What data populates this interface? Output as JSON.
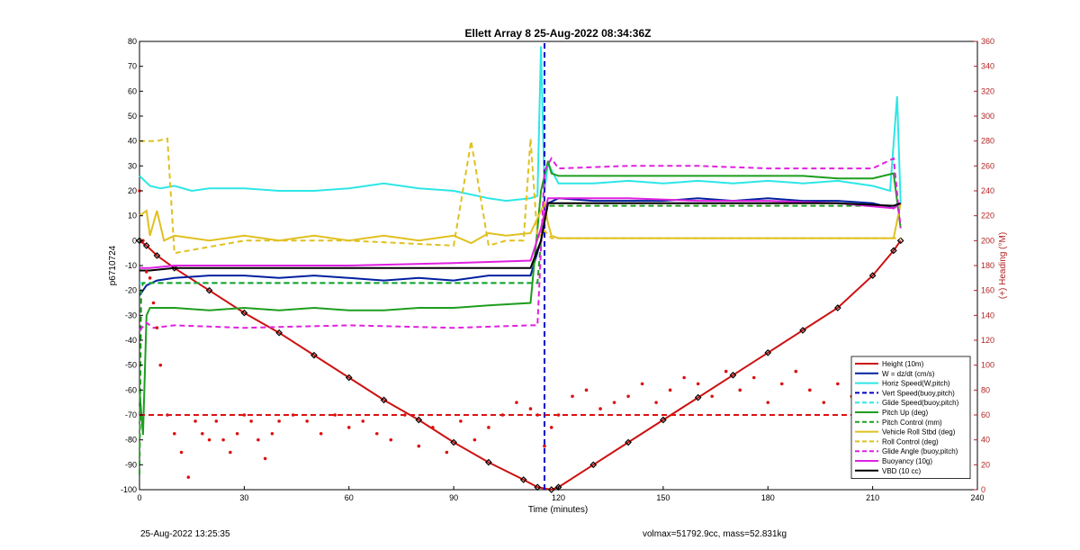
{
  "chart_data": {
    "type": "line",
    "title": "Ellett Array 8 25-Aug-2022 08:34:36Z",
    "xlabel": "Time (minutes)",
    "ylabel_left": "p6710724",
    "ylabel_right": "(+) Heading (°M)",
    "xlim": [
      0,
      240
    ],
    "ylim_left": [
      -100,
      80
    ],
    "ylim_right": [
      0,
      360
    ],
    "x_ticks": [
      "0",
      "30",
      "60",
      "90",
      "120",
      "150",
      "180",
      "210",
      "240"
    ],
    "y_ticks_left": [
      "80",
      "70",
      "60",
      "50",
      "40",
      "30",
      "20",
      "10",
      "0",
      "-10",
      "-20",
      "-30",
      "-40",
      "-50",
      "-60",
      "-70",
      "-80",
      "-90",
      "-100"
    ],
    "y_ticks_right": [
      "360",
      "340",
      "320",
      "300",
      "280",
      "260",
      "240",
      "220",
      "200",
      "180",
      "160",
      "140",
      "120",
      "100",
      "80",
      "60",
      "40",
      "20",
      "0"
    ],
    "grid": false,
    "legend_position": "bottom-right",
    "colors": {
      "height": "#cc1111",
      "w": "#00209f",
      "horiz_speed": "#2ee6e6",
      "vert_speed": "#0000cc",
      "glide_speed": "#2ee6e6",
      "pitch": "#1e9e1e",
      "pitch_control": "#1e9e1e",
      "roll": "#e0c020",
      "roll_control": "#e0c020",
      "glide_angle": "#e020e0",
      "buoyancy": "#e020e0",
      "vbd": "#000000",
      "heading": "#dd1111",
      "right_axis": "#b22222"
    },
    "series": [
      {
        "name": "Height (10m)",
        "axis": "left",
        "x": [
          0,
          2,
          5,
          10,
          20,
          30,
          40,
          50,
          60,
          70,
          80,
          90,
          100,
          110,
          114,
          118,
          120,
          130,
          140,
          150,
          160,
          170,
          180,
          190,
          200,
          210,
          216,
          218
        ],
        "y": [
          0,
          -2,
          -6,
          -11,
          -20,
          -29,
          -37,
          -46,
          -55,
          -64,
          -72,
          -81,
          -89,
          -96,
          -99,
          -100,
          -99,
          -90,
          -81,
          -72,
          -63,
          -54,
          -45,
          -36,
          -27,
          -14,
          -4,
          0
        ]
      },
      {
        "name": "W = dz/dt (cm/s)",
        "axis": "left",
        "x": [
          0,
          2,
          5,
          10,
          20,
          30,
          40,
          50,
          60,
          70,
          80,
          90,
          100,
          112,
          115,
          117,
          120,
          130,
          140,
          150,
          160,
          170,
          180,
          190,
          200,
          210,
          216,
          218
        ],
        "y": [
          -22,
          -18,
          -16,
          -15,
          -14,
          -14,
          -15,
          -14,
          -15,
          -16,
          -15,
          -16,
          -14,
          -14,
          0,
          15,
          17,
          16,
          16,
          16,
          17,
          16,
          17,
          16,
          16,
          15,
          13,
          15
        ]
      },
      {
        "name": "Horiz Speed(W,pitch)",
        "axis": "left",
        "x": [
          0,
          3,
          6,
          10,
          15,
          20,
          30,
          40,
          50,
          60,
          70,
          80,
          90,
          100,
          105,
          112,
          114,
          115,
          116,
          117,
          120,
          130,
          140,
          150,
          160,
          170,
          180,
          190,
          200,
          210,
          215,
          217,
          218
        ],
        "y": [
          26,
          22,
          21,
          22,
          20,
          21,
          21,
          20,
          20,
          21,
          23,
          21,
          20,
          17,
          16,
          17,
          18,
          78,
          20,
          31,
          23,
          23,
          24,
          23,
          24,
          23,
          24,
          23,
          24,
          22,
          20,
          58,
          15
        ]
      },
      {
        "name": "Vert Speed(buoy,pitch)",
        "axis": "left",
        "style": "dashed",
        "x": [
          116,
          116,
          116,
          116
        ],
        "y": [
          -100,
          -40,
          30,
          80
        ]
      },
      {
        "name": "Glide Speed(buoy,pitch)",
        "axis": "left",
        "style": "dashed",
        "x": [
          0,
          114
        ],
        "y": [
          -17,
          -17
        ]
      },
      {
        "name": "Pitch Up (deg)",
        "axis": "left",
        "x": [
          0,
          1,
          2,
          3,
          5,
          10,
          20,
          30,
          40,
          50,
          60,
          70,
          80,
          90,
          100,
          112,
          115,
          117,
          118,
          120,
          130,
          140,
          150,
          160,
          170,
          180,
          190,
          200,
          210,
          216,
          218
        ],
        "y": [
          -60,
          -78,
          -30,
          -27,
          -27,
          -27,
          -28,
          -27,
          -28,
          -27,
          -28,
          -28,
          -27,
          -27,
          -26,
          -25,
          20,
          32,
          27,
          26,
          26,
          26,
          26,
          26,
          26,
          26,
          26,
          25,
          25,
          27,
          5
        ]
      },
      {
        "name": "Pitch Control (mm)",
        "axis": "left",
        "style": "dashed",
        "x": [
          0,
          0.5,
          1,
          5,
          114,
          115,
          116,
          117,
          218
        ],
        "y": [
          -94,
          -20,
          -17,
          -17,
          -17,
          0,
          10,
          14,
          14
        ]
      },
      {
        "name": "Vehicle Roll Stbd (deg)",
        "axis": "left",
        "x": [
          0,
          2,
          3,
          5,
          7,
          10,
          20,
          30,
          40,
          50,
          60,
          70,
          80,
          90,
          95,
          100,
          105,
          112,
          116,
          117,
          118,
          120,
          140,
          160,
          180,
          200,
          210,
          216,
          218
        ],
        "y": [
          10,
          12,
          2,
          12,
          0,
          2,
          0,
          2,
          0,
          2,
          0,
          2,
          0,
          2,
          -1,
          3,
          2,
          3,
          15,
          7,
          2,
          1,
          1,
          1,
          1,
          1,
          1,
          1,
          15
        ]
      },
      {
        "name": "Roll Control (deg)",
        "axis": "left",
        "style": "dashed",
        "x": [
          0,
          3,
          5,
          8,
          10,
          30,
          60,
          90,
          95,
          100,
          105,
          110,
          112,
          114,
          116,
          118,
          120,
          140,
          160,
          180,
          200,
          210,
          216,
          218
        ],
        "y": [
          40,
          40,
          40,
          41,
          -5,
          0,
          0,
          -2,
          40,
          -2,
          0,
          0,
          41,
          1,
          4,
          1,
          1,
          1,
          1,
          1,
          1,
          1,
          1,
          1
        ]
      },
      {
        "name": "Glide Angle (buoy,pitch)",
        "axis": "left",
        "style": "dashed",
        "x": [
          0,
          2,
          4,
          10,
          30,
          60,
          90,
          112,
          114,
          116,
          118,
          120,
          140,
          160,
          180,
          200,
          210,
          216,
          218
        ],
        "y": [
          -36,
          -33,
          -35,
          -34,
          -35,
          -34,
          -35,
          -34,
          -34,
          28,
          33,
          29,
          30,
          30,
          29,
          29,
          29,
          33,
          5
        ]
      },
      {
        "name": "Buoyancy (10g)",
        "axis": "left",
        "x": [
          0,
          3,
          10,
          30,
          60,
          90,
          112,
          115,
          117,
          120,
          140,
          160,
          180,
          200,
          216,
          218
        ],
        "y": [
          -11,
          -11,
          -10,
          -10,
          -10,
          -9,
          -8,
          5,
          17,
          17,
          17,
          16,
          16,
          15,
          13,
          15
        ]
      },
      {
        "name": "VBD (10 cc)",
        "axis": "left",
        "x": [
          0,
          3,
          10,
          30,
          60,
          90,
          112,
          115,
          117,
          120,
          140,
          160,
          180,
          200,
          216,
          218
        ],
        "y": [
          -12,
          -12,
          -11,
          -11,
          -11,
          -11,
          -11,
          0,
          15,
          15,
          15,
          15,
          15,
          15,
          14,
          15
        ]
      },
      {
        "name": "Heading",
        "axis": "right",
        "style": "dots",
        "x": [
          0,
          1,
          2,
          3,
          4,
          5,
          6,
          8,
          10,
          12,
          14,
          16,
          18,
          20,
          22,
          24,
          26,
          28,
          30,
          32,
          34,
          36,
          38,
          40,
          44,
          48,
          52,
          56,
          60,
          64,
          68,
          72,
          76,
          80,
          84,
          88,
          92,
          96,
          100,
          104,
          108,
          112,
          114,
          116,
          118,
          120,
          124,
          128,
          132,
          136,
          140,
          144,
          148,
          152,
          156,
          160,
          164,
          168,
          172,
          176,
          180,
          184,
          188,
          192,
          196,
          200,
          204,
          208,
          212,
          216,
          218
        ],
        "y": [
          240,
          200,
          175,
          170,
          150,
          130,
          100,
          60,
          45,
          30,
          10,
          55,
          45,
          40,
          55,
          40,
          30,
          45,
          60,
          55,
          40,
          25,
          45,
          55,
          60,
          55,
          45,
          60,
          50,
          55,
          45,
          40,
          60,
          35,
          50,
          30,
          55,
          40,
          50,
          60,
          70,
          65,
          60,
          35,
          50,
          60,
          75,
          80,
          65,
          70,
          75,
          85,
          70,
          80,
          90,
          85,
          75,
          95,
          80,
          90,
          70,
          85,
          95,
          80,
          70,
          85,
          75,
          90,
          60,
          55,
          65
        ]
      },
      {
        "name": "Heading mean",
        "axis": "right",
        "style": "dashed",
        "x": [
          0,
          218
        ],
        "y": [
          60,
          60
        ]
      }
    ],
    "legend": [
      {
        "label": "Height (10m)",
        "color": "#cc1111",
        "style": "solid"
      },
      {
        "label": "W = dz/dt (cm/s)",
        "color": "#00209f",
        "style": "solid"
      },
      {
        "label": "Horiz Speed(W,pitch)",
        "color": "#2ee6e6",
        "style": "solid"
      },
      {
        "label": "Vert Speed(buoy,pitch)",
        "color": "#0000cc",
        "style": "dashed"
      },
      {
        "label": "Glide Speed(buoy,pitch)",
        "color": "#2ee6e6",
        "style": "dashed"
      },
      {
        "label": "Pitch Up (deg)",
        "color": "#1e9e1e",
        "style": "solid"
      },
      {
        "label": "Pitch Control (mm)",
        "color": "#1e9e1e",
        "style": "dashed"
      },
      {
        "label": "Vehicle Roll Stbd (deg)",
        "color": "#e0c020",
        "style": "solid"
      },
      {
        "label": "Roll Control (deg)",
        "color": "#e0c020",
        "style": "dashed"
      },
      {
        "label": "Glide Angle (buoy,pitch)",
        "color": "#e020e0",
        "style": "dashed"
      },
      {
        "label": "Buoyancy (10g)",
        "color": "#e020e0",
        "style": "solid"
      },
      {
        "label": "VBD (10 cc)",
        "color": "#000000",
        "style": "solid"
      }
    ]
  },
  "footer": {
    "timestamp": "25-Aug-2022 13:25:35",
    "info": "volmax=51792.9cc, mass=52.831kg"
  }
}
